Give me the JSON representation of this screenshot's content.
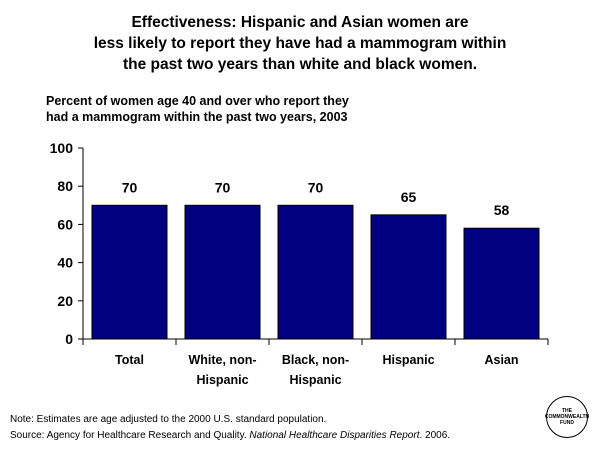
{
  "title_lines": [
    "Effectiveness: Hispanic and Asian women are",
    "less likely to report they have had a mammogram within",
    "the past two years than white and black women."
  ],
  "subtitle_lines": [
    "Percent of women age 40 and over who report they",
    "had a mammogram within the past two years, 2003"
  ],
  "chart_data": {
    "type": "bar",
    "categories": [
      [
        "Total"
      ],
      [
        "White, non-",
        "Hispanic"
      ],
      [
        "Black, non-",
        "Hispanic"
      ],
      [
        "Hispanic"
      ],
      [
        "Asian"
      ]
    ],
    "values": [
      70,
      70,
      70,
      65,
      58
    ],
    "data_labels": [
      "70",
      "70",
      "70",
      "65",
      "58"
    ],
    "ylim": [
      0,
      100
    ],
    "yticks": [
      0,
      20,
      40,
      60,
      80,
      100
    ],
    "grid": false,
    "bar_color": "#000080"
  },
  "footer": {
    "note": "Note: Estimates are age adjusted to the 2000 U.S. standard population.",
    "source_prefix": "Source: Agency for Healthcare Research and Quality. ",
    "source_italic": "National Healthcare Disparities Report",
    "source_suffix": ". 2006.",
    "logo_lines": [
      "THE",
      "COMMONWEALTH",
      "FUND"
    ]
  }
}
